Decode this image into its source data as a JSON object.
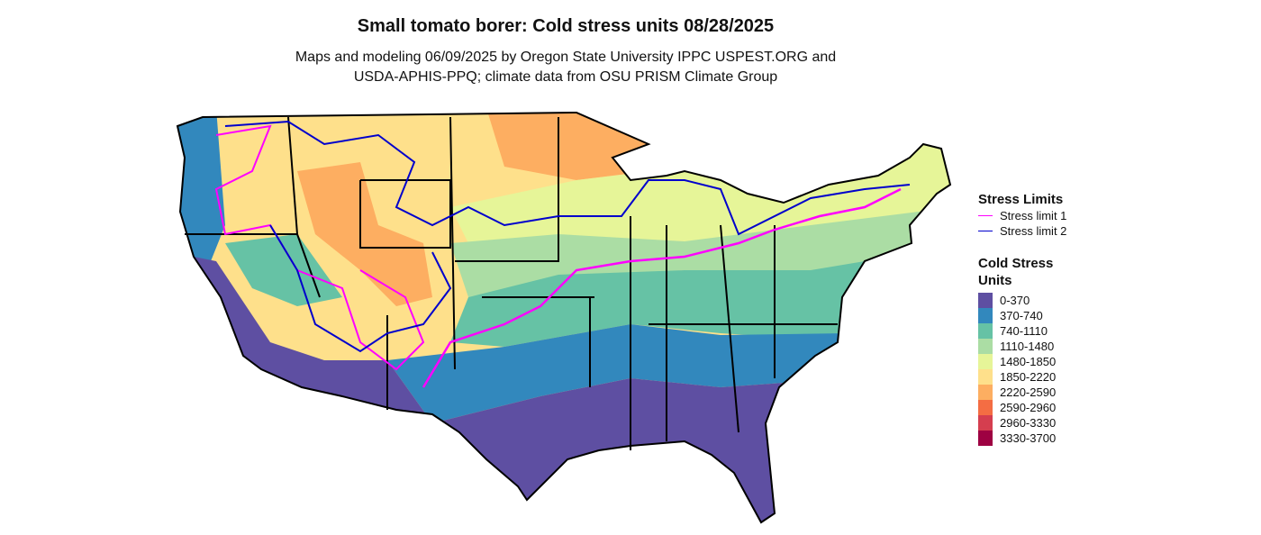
{
  "title": "Small tomato borer: Cold stress units 08/28/2025",
  "subtitle": [
    "Maps and modeling 06/09/2025 by Oregon State University IPPC USPEST.ORG and",
    "USDA-APHIS-PPQ; climate data from OSU PRISM Climate Group"
  ],
  "legend": {
    "limits_title": "Stress Limits",
    "limits": [
      {
        "label": "Stress limit 1",
        "color": "#ff00ff"
      },
      {
        "label": "Stress limit 2",
        "color": "#0000cc"
      }
    ],
    "units_title": "Cold Stress Units",
    "units": [
      {
        "label": "0-370",
        "color": "#5e4fa2"
      },
      {
        "label": "370-740",
        "color": "#3288bd"
      },
      {
        "label": "740-1110",
        "color": "#66c2a5"
      },
      {
        "label": "1110-1480",
        "color": "#abdda4"
      },
      {
        "label": "1480-1850",
        "color": "#e6f598"
      },
      {
        "label": "1850-2220",
        "color": "#fee08b"
      },
      {
        "label": "2220-2590",
        "color": "#fdae61"
      },
      {
        "label": "2590-2960",
        "color": "#f46d43"
      },
      {
        "label": "2960-3330",
        "color": "#d53e4f"
      },
      {
        "label": "3330-3700",
        "color": "#9e0142"
      }
    ]
  }
}
